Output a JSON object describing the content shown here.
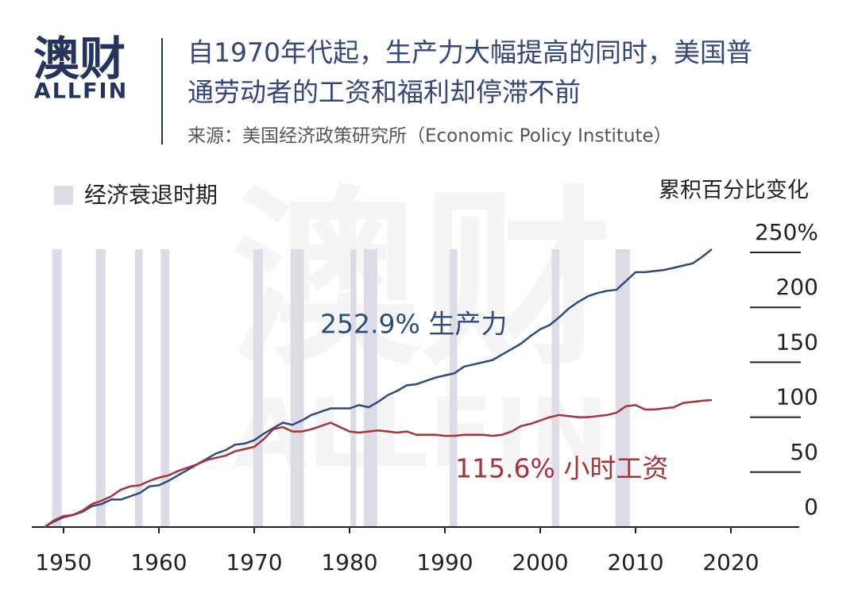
{
  "chart_data": {
    "type": "line",
    "logo": "澳财",
    "logo_sub": "ALLFIN",
    "title": [
      "自1970年代起，生产力大幅提高的同时，美国普",
      "通劳动者的工资和福利却停滞不前"
    ],
    "source": "来源：美国经济政策研究所（Economic Policy Institute）",
    "watermark": [
      "澳财",
      "ALLFIN"
    ],
    "legend": "经济衰退时期",
    "ylabel": "累积百分比变化",
    "recession_color": "#dcdbe6",
    "recessions": [
      [
        1948.8,
        1949.8
      ],
      [
        1953.4,
        1954.4
      ],
      [
        1957.5,
        1958.3
      ],
      [
        1960.2,
        1961.1
      ],
      [
        1969.9,
        1970.9
      ],
      [
        1973.8,
        1975.2
      ],
      [
        1980.1,
        1980.7
      ],
      [
        1981.5,
        1982.9
      ],
      [
        1990.5,
        1991.3
      ],
      [
        2001.2,
        2002.0
      ],
      [
        2007.9,
        2009.4
      ]
    ],
    "x": [
      1948,
      1949,
      1950,
      1951,
      1952,
      1953,
      1954,
      1955,
      1956,
      1957,
      1958,
      1959,
      1960,
      1961,
      1962,
      1963,
      1964,
      1965,
      1966,
      1967,
      1968,
      1969,
      1970,
      1971,
      1972,
      1973,
      1974,
      1975,
      1976,
      1977,
      1978,
      1979,
      1980,
      1981,
      1982,
      1983,
      1984,
      1985,
      1986,
      1987,
      1988,
      1989,
      1990,
      1991,
      1992,
      1993,
      1994,
      1995,
      1996,
      1997,
      1998,
      1999,
      2000,
      2001,
      2002,
      2003,
      2004,
      2005,
      2006,
      2007,
      2008,
      2009,
      2010,
      2011,
      2012,
      2013,
      2014,
      2015,
      2016,
      2017,
      2018
    ],
    "series": [
      {
        "name": "生产力",
        "color": "#2e4a7e",
        "label": "252.9% 生产力",
        "values": [
          0,
          5,
          9,
          11,
          14,
          19,
          21,
          25,
          25,
          28,
          31,
          37,
          38,
          42,
          47,
          52,
          57,
          62,
          67,
          70,
          75,
          76,
          79,
          85,
          90,
          95,
          93,
          97,
          102,
          105,
          108,
          108,
          108,
          111,
          109,
          114,
          120,
          124,
          129,
          130,
          133,
          136,
          138,
          140,
          146,
          148,
          150,
          152,
          157,
          162,
          167,
          174,
          180,
          184,
          191,
          199,
          205,
          210,
          213,
          215,
          216,
          224,
          232,
          232,
          233,
          234,
          236,
          238,
          240,
          246,
          252.9
        ]
      },
      {
        "name": "小时工资",
        "color": "#a8323a",
        "label": "115.6% 小时工资",
        "values": [
          0,
          6,
          10,
          11,
          15,
          21,
          24,
          28,
          34,
          37,
          38,
          42,
          45,
          47,
          51,
          54,
          57,
          61,
          63,
          65,
          69,
          71,
          73,
          80,
          89,
          91,
          87,
          87,
          89,
          92,
          95,
          91,
          87,
          86,
          87,
          88,
          87,
          86,
          87,
          84,
          84,
          84,
          83,
          83,
          84,
          84,
          84,
          83,
          84,
          87,
          92,
          94,
          97,
          100,
          102,
          101,
          100,
          100,
          101,
          102,
          104,
          110,
          111,
          107,
          107,
          108,
          109,
          113,
          114,
          115,
          115.6
        ]
      }
    ],
    "xlim": [
      1947,
      2027
    ],
    "xticks": [
      1950,
      1960,
      1970,
      1980,
      1990,
      2000,
      2010,
      2020
    ],
    "ylim": [
      0,
      250
    ],
    "yticks": [
      0,
      50,
      100,
      150,
      200,
      {
        "value": 250,
        "label": "250%"
      }
    ]
  }
}
